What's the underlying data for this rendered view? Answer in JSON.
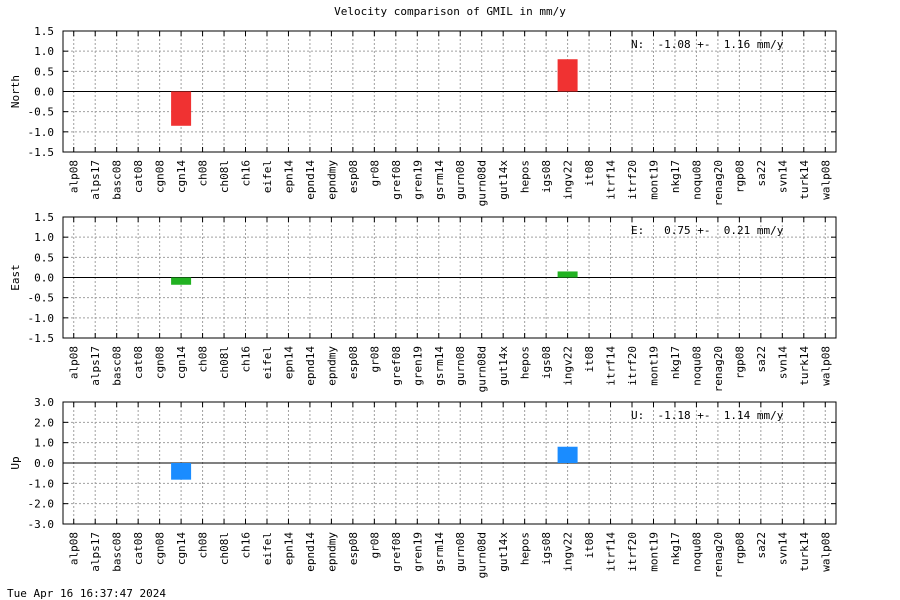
{
  "title": "Velocity comparison of GMIL in mm/y",
  "timestamp": "Tue Apr 16 16:37:47 2024",
  "colors": {
    "north": "#f03232",
    "east": "#22b222",
    "up": "#1a8cff",
    "grid": "#a0a0a0"
  },
  "chart_data": [
    {
      "type": "bar",
      "ylabel": "North",
      "ylim": [
        -1.5,
        1.5
      ],
      "yticks": [
        "1.5",
        "1.0",
        "0.5",
        "0.0",
        "-0.5",
        "-1.0",
        "-1.5"
      ],
      "annotation": "N:  -1.08 +-  1.16 mm/y",
      "categories": [
        "alp08",
        "alps17",
        "basc08",
        "cat08",
        "cgn08",
        "cgn14",
        "ch08",
        "ch08l",
        "ch16",
        "eifel",
        "epn14",
        "epnd14",
        "epndmy",
        "esp08",
        "gr08",
        "gref08",
        "gren19",
        "gsrm14",
        "gurn08",
        "gurn08d",
        "gut14x",
        "hepos",
        "igs08",
        "ingv22",
        "it08",
        "itrf14",
        "itrf20",
        "mont19",
        "nkg17",
        "noqu08",
        "renag20",
        "rgp08",
        "sa22",
        "svn14",
        "turk14",
        "walp08"
      ],
      "values": {
        "cgn14": -0.85,
        "ingv22": 0.8
      },
      "grid": true
    },
    {
      "type": "bar",
      "ylabel": "East",
      "ylim": [
        -1.5,
        1.5
      ],
      "yticks": [
        "1.5",
        "1.0",
        "0.5",
        "0.0",
        "-0.5",
        "-1.0",
        "-1.5"
      ],
      "annotation": "E:   0.75 +-  0.21 mm/y",
      "categories": [
        "alp08",
        "alps17",
        "basc08",
        "cat08",
        "cgn08",
        "cgn14",
        "ch08",
        "ch08l",
        "ch16",
        "eifel",
        "epn14",
        "epnd14",
        "epndmy",
        "esp08",
        "gr08",
        "gref08",
        "gren19",
        "gsrm14",
        "gurn08",
        "gurn08d",
        "gut14x",
        "hepos",
        "igs08",
        "ingv22",
        "it08",
        "itrf14",
        "itrf20",
        "mont19",
        "nkg17",
        "noqu08",
        "renag20",
        "rgp08",
        "sa22",
        "svn14",
        "turk14",
        "walp08"
      ],
      "values": {
        "cgn14": -0.18,
        "ingv22": 0.15
      },
      "grid": true
    },
    {
      "type": "bar",
      "ylabel": "Up",
      "ylim": [
        -3.0,
        3.0
      ],
      "yticks": [
        "3.0",
        "2.0",
        "1.0",
        "0.0",
        "-1.0",
        "-2.0",
        "-3.0"
      ],
      "annotation": "U:  -1.18 +-  1.14 mm/y",
      "categories": [
        "alp08",
        "alps17",
        "basc08",
        "cat08",
        "cgn08",
        "cgn14",
        "ch08",
        "ch08l",
        "ch16",
        "eifel",
        "epn14",
        "epnd14",
        "epndmy",
        "esp08",
        "gr08",
        "gref08",
        "gren19",
        "gsrm14",
        "gurn08",
        "gurn08d",
        "gut14x",
        "hepos",
        "igs08",
        "ingv22",
        "it08",
        "itrf14",
        "itrf20",
        "mont19",
        "nkg17",
        "noqu08",
        "renag20",
        "rgp08",
        "sa22",
        "svn14",
        "turk14",
        "walp08"
      ],
      "values": {
        "cgn14": -0.82,
        "ingv22": 0.8
      },
      "grid": true
    }
  ]
}
